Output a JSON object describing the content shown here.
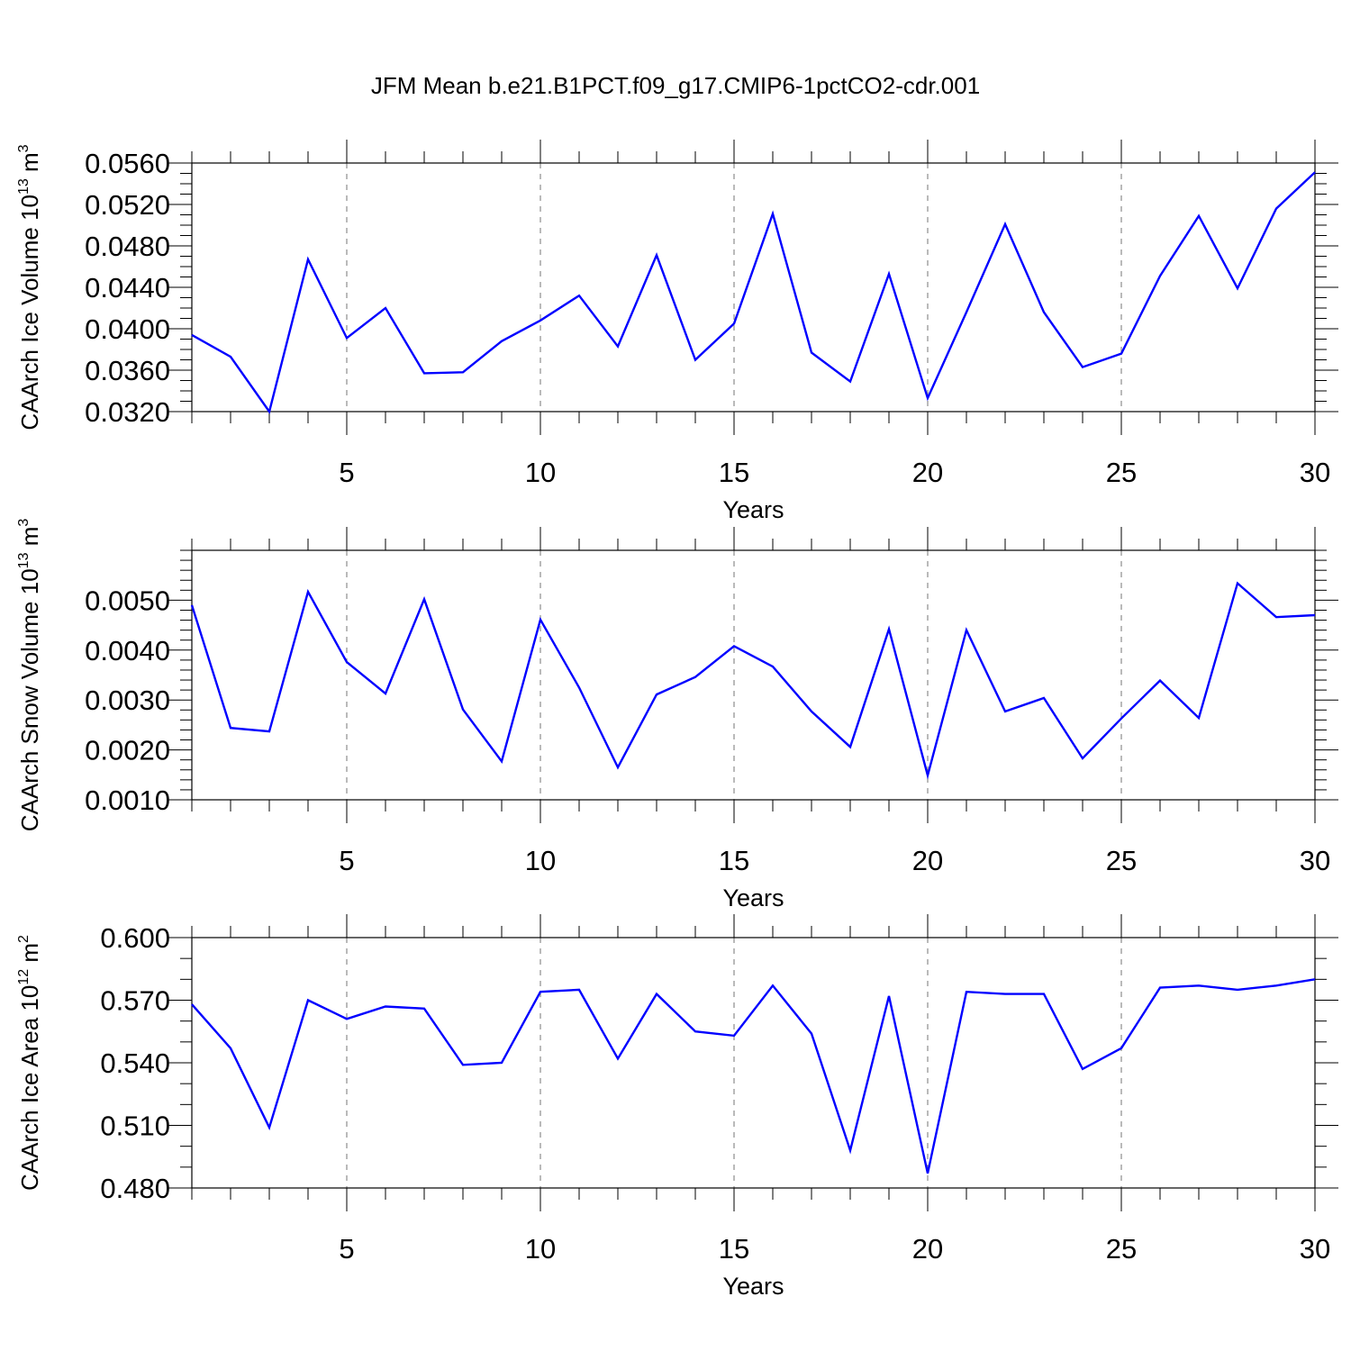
{
  "title": "JFM Mean b.e21.B1PCT.f09_g17.CMIP6-1pctCO2-cdr.001",
  "colors": {
    "line": "#0000ff",
    "axis": "#000000",
    "grid": "#8c8c8c"
  },
  "chart_data": [
    {
      "type": "line",
      "ylabel_main": "CAArch Ice Volume 10",
      "ylabel_exp": "13",
      "ylabel_unit": " m",
      "ylabel_unit_exp": "3",
      "xlabel": "Years",
      "xlim": [
        1,
        30
      ],
      "ylim": [
        0.032,
        0.056
      ],
      "yticks": [
        0.032,
        0.036,
        0.04,
        0.044,
        0.048,
        0.052,
        0.056
      ],
      "yticklabels": [
        "0.0320",
        "0.0360",
        "0.0400",
        "0.0440",
        "0.0480",
        "0.0520",
        "0.0560"
      ],
      "yminor": 0.001,
      "xticks": [
        5,
        10,
        15,
        20,
        25,
        30
      ],
      "xticklabels": [
        "5",
        "10",
        "15",
        "20",
        "25",
        "30"
      ],
      "x": [
        1,
        2,
        3,
        4,
        5,
        6,
        7,
        8,
        9,
        10,
        11,
        12,
        13,
        14,
        15,
        16,
        17,
        18,
        19,
        20,
        21,
        22,
        23,
        24,
        25,
        26,
        27,
        28,
        29,
        30
      ],
      "values": [
        0.0394,
        0.0373,
        0.032,
        0.0467,
        0.0391,
        0.042,
        0.0357,
        0.0358,
        0.0388,
        0.0408,
        0.0432,
        0.0383,
        0.0471,
        0.037,
        0.0405,
        0.0511,
        0.0377,
        0.0349,
        0.0453,
        0.0333,
        0.0416,
        0.0501,
        0.0416,
        0.0363,
        0.0376,
        0.0451,
        0.0509,
        0.0439,
        0.0516,
        0.0551
      ]
    },
    {
      "type": "line",
      "ylabel_main": "CAArch Snow Volume 10",
      "ylabel_exp": "13",
      "ylabel_unit": " m",
      "ylabel_unit_exp": "3",
      "xlabel": "Years",
      "xlim": [
        1,
        30
      ],
      "ylim": [
        0.001,
        0.006
      ],
      "yticks": [
        0.001,
        0.002,
        0.003,
        0.004,
        0.005
      ],
      "yticklabels": [
        "0.0010",
        "0.0020",
        "0.0030",
        "0.0040",
        "0.0050"
      ],
      "yminor": 0.0002,
      "xticks": [
        5,
        10,
        15,
        20,
        25,
        30
      ],
      "xticklabels": [
        "5",
        "10",
        "15",
        "20",
        "25",
        "30"
      ],
      "x": [
        1,
        2,
        3,
        4,
        5,
        6,
        7,
        8,
        9,
        10,
        11,
        12,
        13,
        14,
        15,
        16,
        17,
        18,
        19,
        20,
        21,
        22,
        23,
        24,
        25,
        26,
        27,
        28,
        29,
        30
      ],
      "values": [
        0.0049,
        0.00244,
        0.00237,
        0.00517,
        0.00376,
        0.00313,
        0.00502,
        0.00281,
        0.00177,
        0.00461,
        0.00325,
        0.00165,
        0.00311,
        0.00346,
        0.00408,
        0.00367,
        0.00277,
        0.00206,
        0.00442,
        0.00149,
        0.0044,
        0.00277,
        0.00304,
        0.00183,
        0.00263,
        0.00339,
        0.00264,
        0.00534,
        0.00466,
        0.0047
      ]
    },
    {
      "type": "line",
      "ylabel_main": "CAArch Ice Area 10",
      "ylabel_exp": "12",
      "ylabel_unit": " m",
      "ylabel_unit_exp": "2",
      "xlabel": "Years",
      "xlim": [
        1,
        30
      ],
      "ylim": [
        0.48,
        0.6
      ],
      "yticks": [
        0.48,
        0.51,
        0.54,
        0.57,
        0.6
      ],
      "yticklabels": [
        "0.480",
        "0.510",
        "0.540",
        "0.570",
        "0.600"
      ],
      "yminor": 0.01,
      "xticks": [
        5,
        10,
        15,
        20,
        25,
        30
      ],
      "xticklabels": [
        "5",
        "10",
        "15",
        "20",
        "25",
        "30"
      ],
      "x": [
        1,
        2,
        3,
        4,
        5,
        6,
        7,
        8,
        9,
        10,
        11,
        12,
        13,
        14,
        15,
        16,
        17,
        18,
        19,
        20,
        21,
        22,
        23,
        24,
        25,
        26,
        27,
        28,
        29,
        30
      ],
      "values": [
        0.568,
        0.547,
        0.509,
        0.57,
        0.561,
        0.567,
        0.566,
        0.539,
        0.54,
        0.574,
        0.575,
        0.542,
        0.573,
        0.555,
        0.553,
        0.577,
        0.554,
        0.498,
        0.572,
        0.487,
        0.574,
        0.573,
        0.573,
        0.537,
        0.547,
        0.576,
        0.577,
        0.575,
        0.577,
        0.58
      ]
    }
  ]
}
